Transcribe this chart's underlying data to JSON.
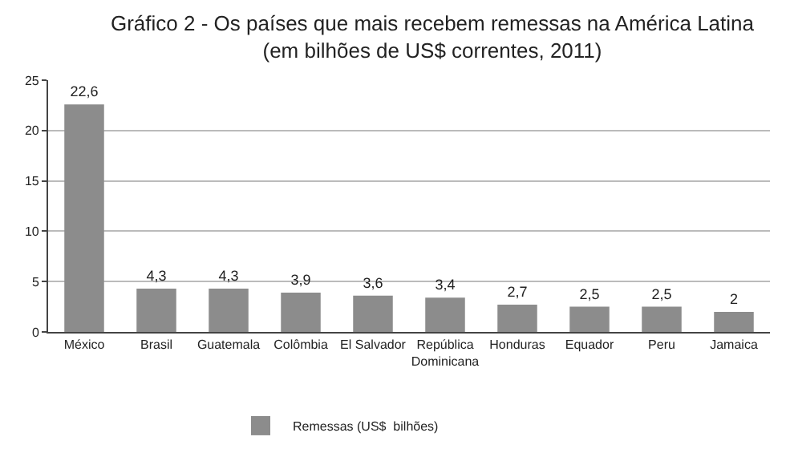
{
  "chart_data": {
    "type": "bar",
    "title": "Gráfico 2 - Os países que mais recebem remessas na América Latina\n(em bilhões de US$ correntes, 2011)",
    "categories": [
      "México",
      "Brasil",
      "Guatemala",
      "Colômbia",
      "El Salvador",
      "República Dominicana",
      "Honduras",
      "Equador",
      "Peru",
      "Jamaica"
    ],
    "series": [
      {
        "name": "Remessas (US$  bilhões)",
        "color": "#8c8c8c",
        "values": [
          22.6,
          4.3,
          4.3,
          3.9,
          3.6,
          3.4,
          2.7,
          2.5,
          2.5,
          2
        ],
        "value_labels": [
          "22,6",
          "4,3",
          "4,3",
          "3,9",
          "3,6",
          "3,4",
          "2,7",
          "2,5",
          "2,5",
          "2"
        ]
      }
    ],
    "ylim": [
      0,
      25
    ],
    "yticks": [
      0,
      5,
      10,
      15,
      20,
      25
    ],
    "grid": "y",
    "legend": "bottom"
  }
}
